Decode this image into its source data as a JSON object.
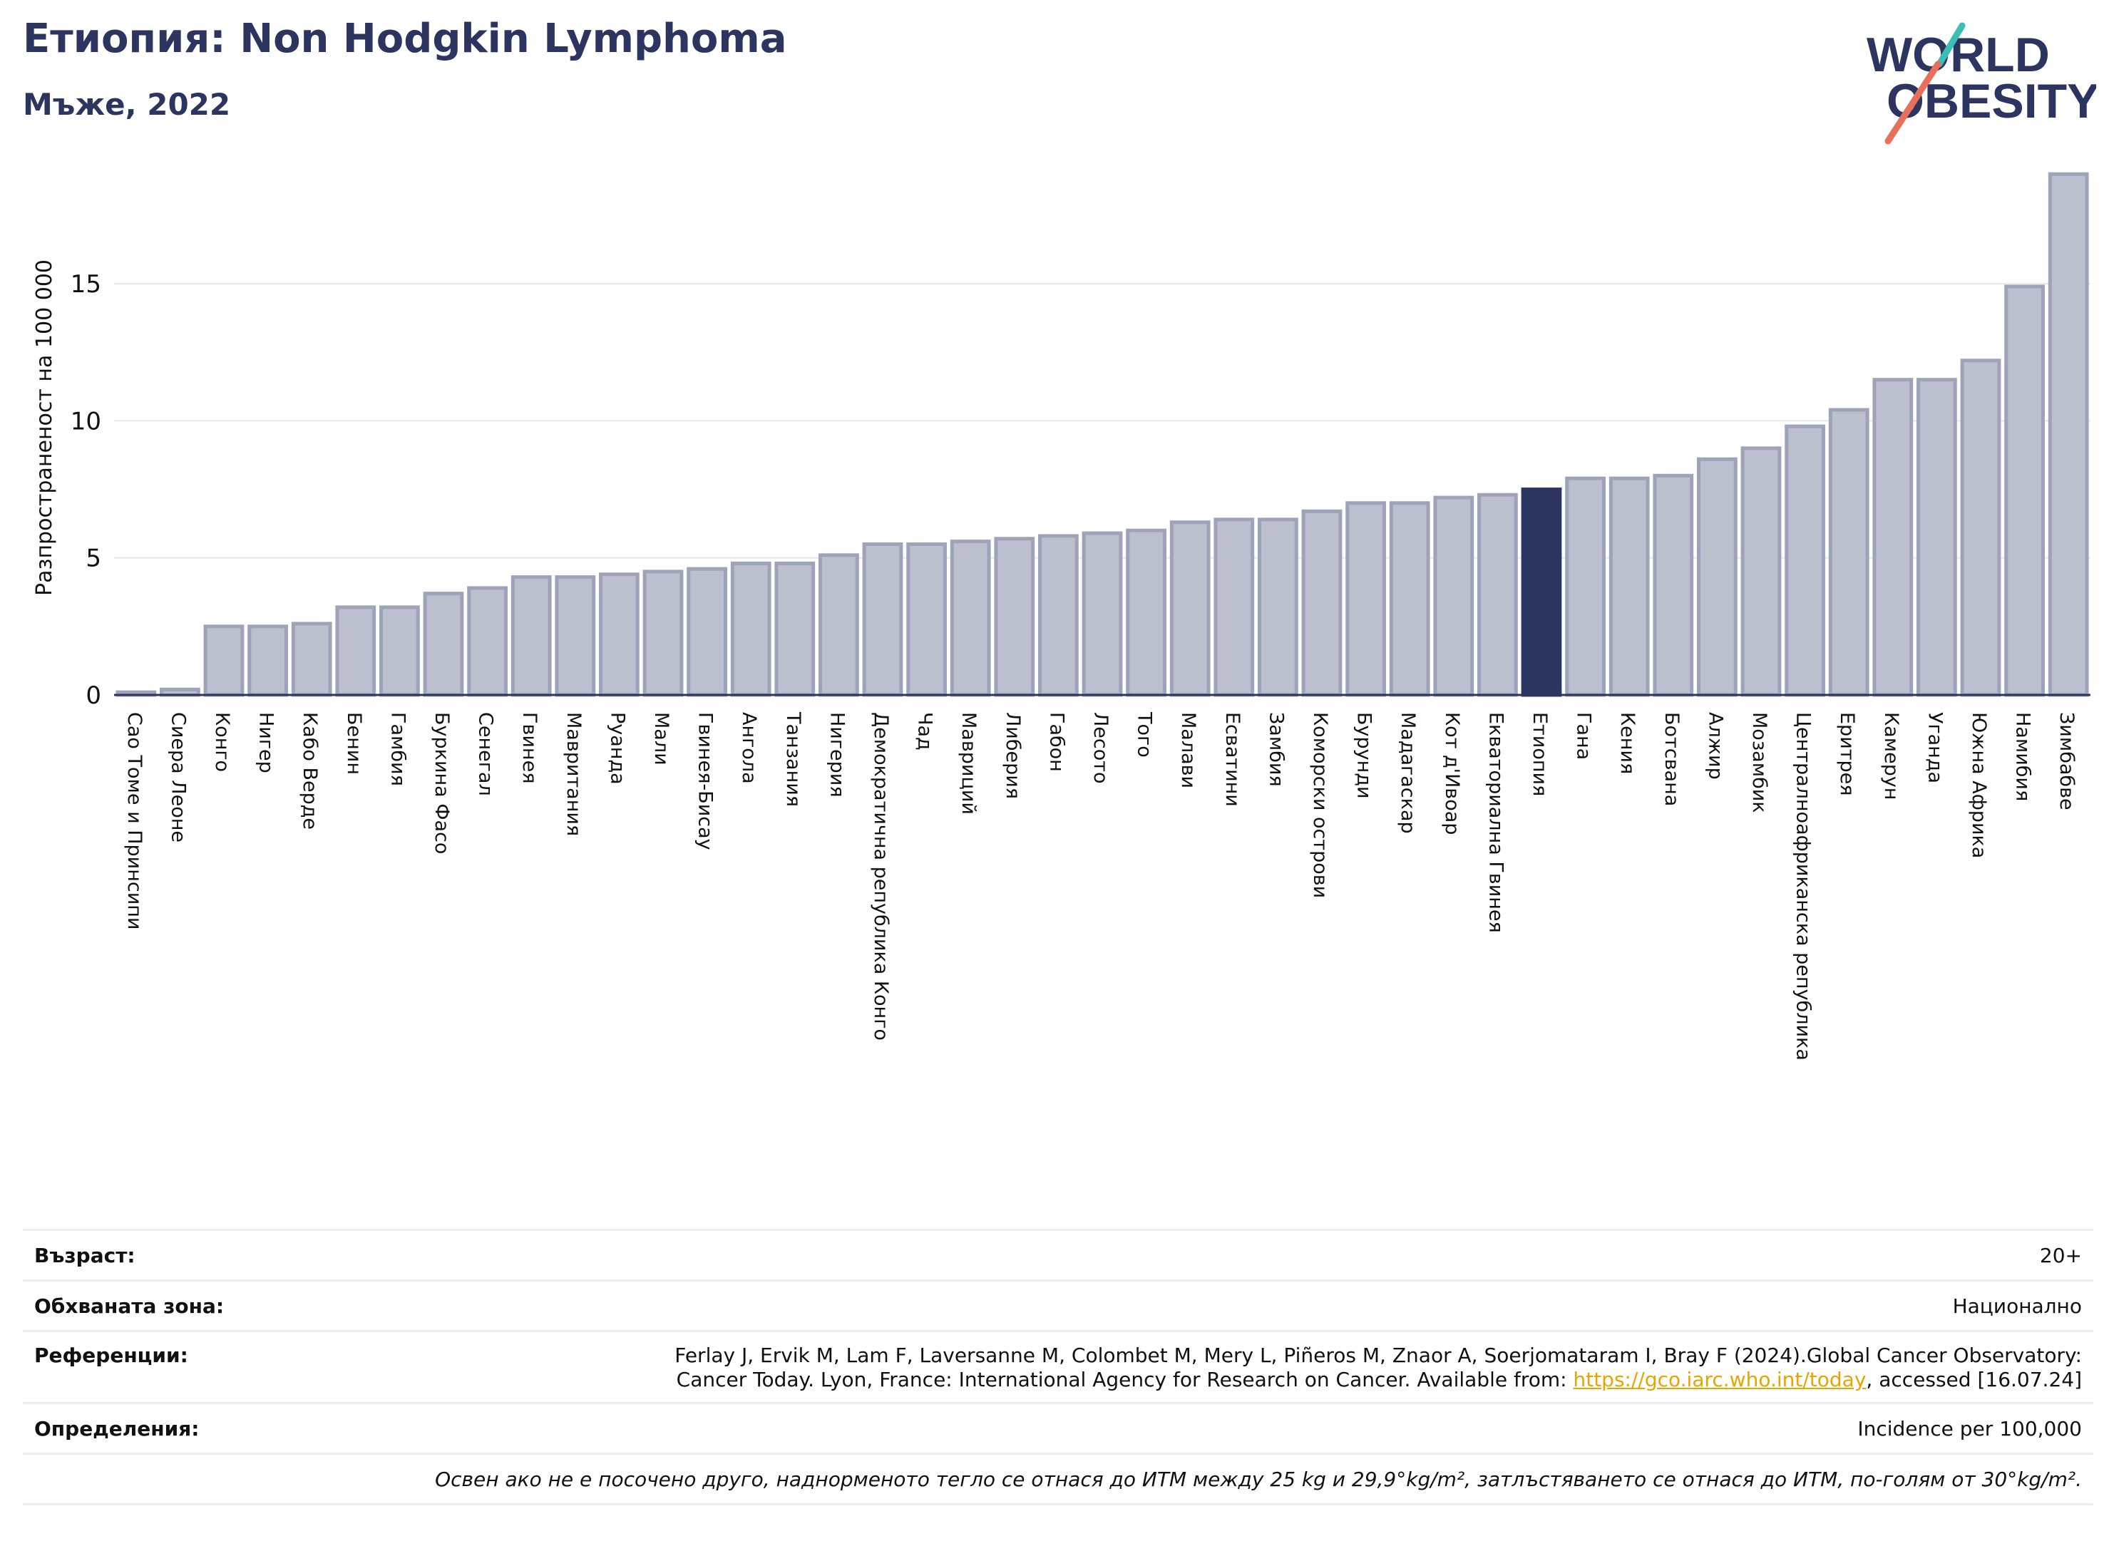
{
  "header": {
    "title": "Етиопия: Non Hodgkin Lymphoma",
    "subtitle": "Мъже, 2022",
    "logo_text_line1": "WORLD",
    "logo_text_line2": "OBESITY"
  },
  "colors": {
    "accent": "#2b3560",
    "bar": "#bcc0ce",
    "bar_edge": "#9da3b8",
    "highlight": "#2b3560",
    "logo_teal": "#3bbfb5",
    "logo_coral": "#e8705a",
    "link": "#e8a500"
  },
  "chart_data": {
    "type": "bar",
    "ylabel": "Разпространеност  на 100 000",
    "ylim": [
      0,
      19.5
    ],
    "yticks": [
      0,
      5,
      10,
      15
    ],
    "grid": true,
    "highlight": "Етиопия",
    "categories": [
      "Сао Томе и Принсипи",
      "Сиера Леоне",
      "Конго",
      "Нигер",
      "Кабо Верде",
      "Бенин",
      "Гамбия",
      "Буркина Фасо",
      "Сенегал",
      "Гвинея",
      "Мавритания",
      "Руанда",
      "Мали",
      "Гвинея-Бисау",
      "Ангола",
      "Танзания",
      "Нигерия",
      "Демократична република Конго",
      "Чад",
      "Мавриций",
      "Либерия",
      "Габон",
      "Лесото",
      "Того",
      "Малави",
      "Есватини",
      "Замбия",
      "Коморски острови",
      "Бурунди",
      "Мадагаскар",
      "Кот д'Ивоар",
      "Екваториална Гвинея",
      "Етиопия",
      "Гана",
      "Кения",
      "Ботсвана",
      "Алжир",
      "Мозамбик",
      "Централноафриканска република",
      "Еритрея",
      "Камерун",
      "Уганда",
      "Южна Африка",
      "Намибия",
      "Зимбабве"
    ],
    "values": [
      0.1,
      0.2,
      2.5,
      2.5,
      2.6,
      3.2,
      3.2,
      3.7,
      3.9,
      4.3,
      4.3,
      4.4,
      4.5,
      4.6,
      4.8,
      4.8,
      5.1,
      5.5,
      5.5,
      5.6,
      5.7,
      5.8,
      5.9,
      6.0,
      6.3,
      6.4,
      6.4,
      6.7,
      7.0,
      7.0,
      7.2,
      7.3,
      7.5,
      7.9,
      7.9,
      8.0,
      8.6,
      9.0,
      9.8,
      10.4,
      11.5,
      11.5,
      12.2,
      14.9,
      19.0
    ]
  },
  "meta": {
    "age_label": "Възраст:",
    "age_value": "20+",
    "area_label": "Обхваната зона:",
    "area_value": "Национално",
    "refs_label": "Референции:",
    "refs_line1": "Ferlay J, Ervik M, Lam F, Laversanne M, Colombet M, Mery L, Piñeros M, Znaor A, Soerjomataram I, Bray F (2024).Global Cancer Observatory:",
    "refs_line2_pre": "Cancer Today. Lyon, France: International Agency for Research on Cancer. Available from: ",
    "refs_link": "https://gco.iarc.who.int/today",
    "refs_line2_post": ", accessed [16.07.24]",
    "defs_label": "Определения:",
    "defs_value": "Incidence per 100,000",
    "note": "Освен ако не е посочено друго, наднорменото тегло се отнася до ИТМ между 25 kg и 29,9°kg/m², затлъстяването се отнася до ИТМ, по-голям от 30°kg/m²."
  }
}
